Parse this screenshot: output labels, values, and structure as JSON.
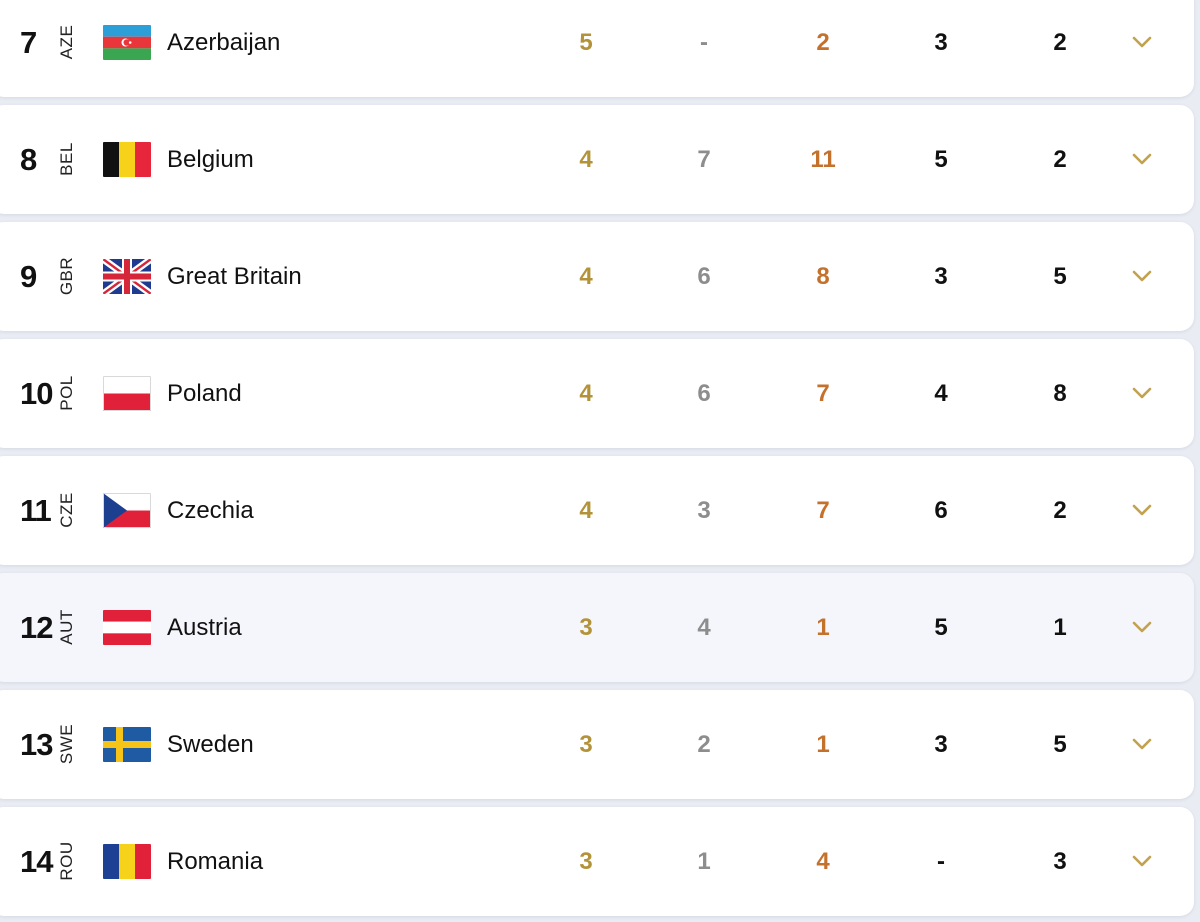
{
  "colors": {
    "gold": "#b39339",
    "silver": "#8d8d8d",
    "bronze": "#c4712c",
    "text": "#111111",
    "chevron": "#c2a24f",
    "row_bg": "#ffffff",
    "row_alt_bg": "#f5f6fb"
  },
  "rows": [
    {
      "rank": "7",
      "code": "AZE",
      "country": "Azerbaijan",
      "flag": "azerbaijan-flag",
      "gold": "5",
      "silver": "-",
      "bronze": "2",
      "col4": "3",
      "col5": "2"
    },
    {
      "rank": "8",
      "code": "BEL",
      "country": "Belgium",
      "flag": "belgium-flag",
      "gold": "4",
      "silver": "7",
      "bronze": "11",
      "col4": "5",
      "col5": "2"
    },
    {
      "rank": "9",
      "code": "GBR",
      "country": "Great Britain",
      "flag": "great-britain-flag",
      "gold": "4",
      "silver": "6",
      "bronze": "8",
      "col4": "3",
      "col5": "5"
    },
    {
      "rank": "10",
      "code": "POL",
      "country": "Poland",
      "flag": "poland-flag",
      "gold": "4",
      "silver": "6",
      "bronze": "7",
      "col4": "4",
      "col5": "8"
    },
    {
      "rank": "11",
      "code": "CZE",
      "country": "Czechia",
      "flag": "czechia-flag",
      "gold": "4",
      "silver": "3",
      "bronze": "7",
      "col4": "6",
      "col5": "2"
    },
    {
      "rank": "12",
      "code": "AUT",
      "country": "Austria",
      "flag": "austria-flag",
      "gold": "3",
      "silver": "4",
      "bronze": "1",
      "col4": "5",
      "col5": "1"
    },
    {
      "rank": "13",
      "code": "SWE",
      "country": "Sweden",
      "flag": "sweden-flag",
      "gold": "3",
      "silver": "2",
      "bronze": "1",
      "col4": "3",
      "col5": "5"
    },
    {
      "rank": "14",
      "code": "ROU",
      "country": "Romania",
      "flag": "romania-flag",
      "gold": "3",
      "silver": "1",
      "bronze": "4",
      "col4": "-",
      "col5": "3"
    }
  ],
  "icons": {
    "expand": "chevron-down-icon"
  }
}
